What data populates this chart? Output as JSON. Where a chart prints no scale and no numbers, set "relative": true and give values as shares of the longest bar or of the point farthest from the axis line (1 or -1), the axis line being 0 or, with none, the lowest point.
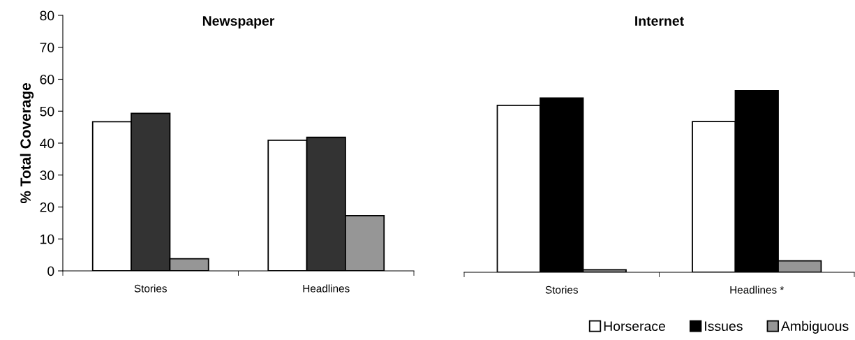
{
  "chart_data": [
    {
      "type": "bar",
      "title": "Newspaper",
      "ylabel": "% Total Coverage",
      "categories": [
        "Stories",
        "Headlines"
      ],
      "ylim": [
        0,
        80
      ],
      "yticks": [
        0,
        10,
        20,
        30,
        40,
        50,
        60,
        70,
        80
      ],
      "grid": false,
      "legend": false,
      "series": [
        {
          "color": "#ffffff",
          "values": [
            46.7,
            40.9
          ]
        },
        {
          "color": "#333333",
          "values": [
            49.3,
            41.8
          ]
        },
        {
          "color": "#969696",
          "values": [
            3.8,
            17.3
          ]
        }
      ]
    },
    {
      "type": "bar",
      "title": "Internet",
      "categories": [
        "Stories",
        "Headlines *"
      ],
      "relative": true,
      "grid": false,
      "legend": "bottom right",
      "series": [
        {
          "name": "Horserace",
          "color": "#ffffff",
          "values": [
            0.92,
            0.83
          ]
        },
        {
          "name": "Issues",
          "color": "#000000",
          "values": [
            0.96,
            1
          ]
        },
        {
          "name": "Ambiguous",
          "color": "#969696",
          "values": [
            0.014,
            0.063
          ]
        }
      ]
    }
  ]
}
